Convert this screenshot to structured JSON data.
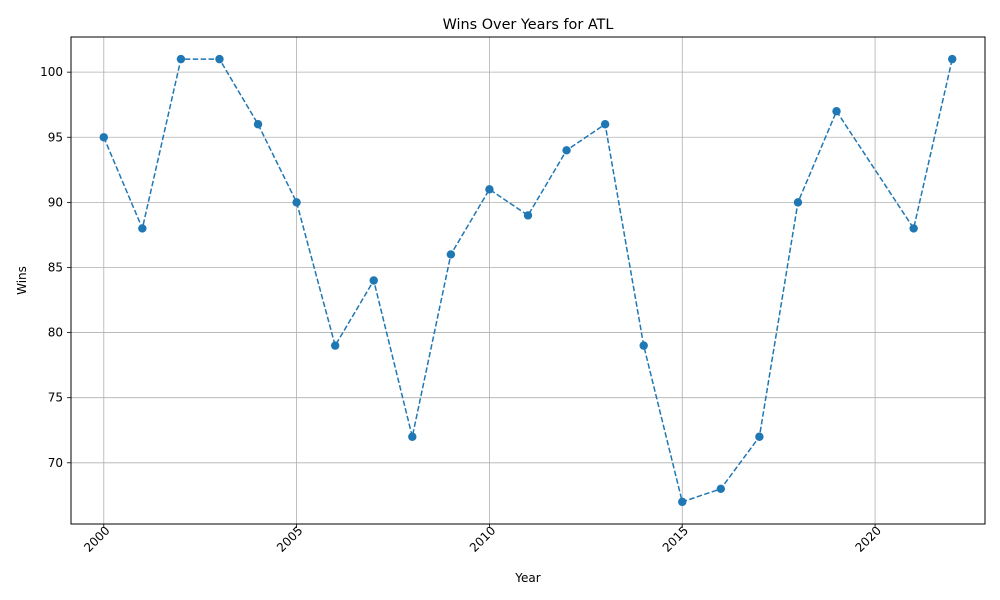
{
  "chart_data": {
    "type": "line",
    "title": "Wins Over Years for ATL",
    "xlabel": "Year",
    "ylabel": "Wins",
    "x_ticks": [
      2000,
      2005,
      2010,
      2015,
      2020
    ],
    "y_ticks": [
      70,
      75,
      80,
      85,
      90,
      95,
      100
    ],
    "xlim": [
      1999.15,
      2022.85
    ],
    "ylim": [
      65.3,
      102.7
    ],
    "grid": true,
    "color": "#1f77b4",
    "line_style": "dashed",
    "marker": "circle",
    "series": [
      {
        "x": [
          2000,
          2001,
          2002,
          2003,
          2004,
          2005,
          2006,
          2007,
          2008,
          2009,
          2010,
          2011,
          2012,
          2013,
          2014,
          2015,
          2016,
          2017,
          2018,
          2019,
          2021,
          2022
        ],
        "values": [
          95,
          88,
          101,
          101,
          96,
          90,
          79,
          84,
          72,
          86,
          91,
          89,
          94,
          96,
          79,
          67,
          68,
          72,
          90,
          97,
          88,
          101
        ]
      }
    ]
  }
}
